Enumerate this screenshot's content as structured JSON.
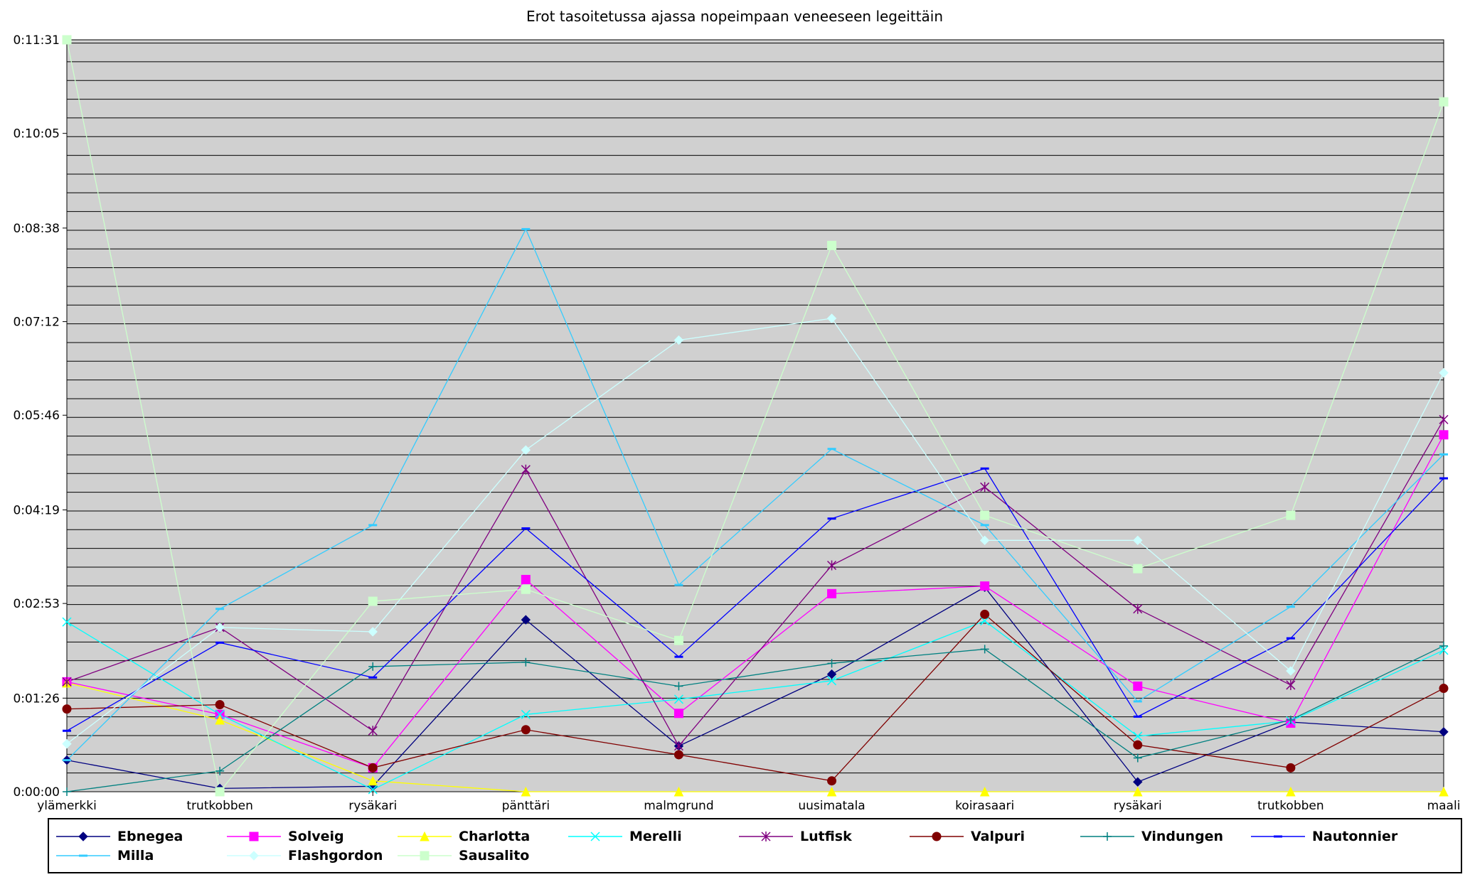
{
  "chart_data": {
    "type": "line",
    "title": "Erot tasoitetussa ajassa nopeimpaan veneeseen legeittäin",
    "xlabel": "",
    "ylabel": "",
    "categories": [
      "ylämerkki",
      "trutkobben",
      "rysäkari",
      "pänttäri",
      "malmgrund",
      "uusimatala",
      "koirasaari",
      "rysäkari",
      "trutkobben",
      "maali"
    ],
    "y_axis_unit": "seconds",
    "ylim": [
      0,
      691
    ],
    "y_ticks": [
      0,
      86,
      173,
      259,
      346,
      432,
      518,
      605,
      691
    ],
    "y_tick_labels": [
      "0:00:00",
      "0:01:26",
      "0:02:53",
      "0:04:19",
      "0:05:46",
      "0:07:12",
      "0:08:38",
      "0:10:05",
      "0:11:31"
    ],
    "grid": "horizontal",
    "plot_background": "#d0d0d0",
    "legend_position": "bottom",
    "series": [
      {
        "name": "Ebnegea",
        "color": "#000080",
        "marker": "diamond",
        "values": [
          29,
          3,
          5,
          158,
          42,
          108,
          188,
          9,
          64,
          55
        ]
      },
      {
        "name": "Solveig",
        "color": "#ff00ff",
        "marker": "square",
        "values": [
          101,
          71,
          22,
          195,
          72,
          182,
          189,
          97,
          63,
          328
        ]
      },
      {
        "name": "Charlotta",
        "color": "#ffff00",
        "marker": "triangle",
        "values": [
          100,
          66,
          10,
          0,
          0,
          0,
          0,
          0,
          0,
          0
        ]
      },
      {
        "name": "Merelli",
        "color": "#00ffff",
        "marker": "x",
        "values": [
          156,
          71,
          2,
          71,
          85,
          102,
          157,
          51,
          65,
          130
        ]
      },
      {
        "name": "Lutfisk",
        "color": "#800080",
        "marker": "star",
        "values": [
          101,
          151,
          56,
          296,
          42,
          208,
          280,
          168,
          98,
          342
        ]
      },
      {
        "name": "Valpuri",
        "color": "#800000",
        "marker": "circle",
        "values": [
          76,
          80,
          22,
          57,
          34,
          10,
          163,
          43,
          22,
          95
        ]
      },
      {
        "name": "Vindungen",
        "color": "#008080",
        "marker": "plus",
        "values": [
          0,
          19,
          115,
          119,
          97,
          118,
          131,
          31,
          66,
          134
        ]
      },
      {
        "name": "Nautonnier",
        "color": "#0000ff",
        "marker": "dash",
        "values": [
          56,
          137,
          105,
          242,
          124,
          251,
          297,
          69,
          141,
          288
        ]
      },
      {
        "name": "Milla",
        "color": "#33ccff",
        "marker": "dash",
        "values": [
          29,
          168,
          245,
          517,
          190,
          315,
          245,
          83,
          170,
          310
        ]
      },
      {
        "name": "Flashgordon",
        "color": "#ccffff",
        "marker": "diamond",
        "values": [
          44,
          151,
          147,
          314,
          415,
          435,
          231,
          231,
          111,
          385
        ]
      },
      {
        "name": "Sausalito",
        "color": "#ccffcc",
        "marker": "square",
        "values": [
          691,
          0,
          175,
          186,
          139,
          502,
          254,
          205,
          254,
          634
        ]
      }
    ]
  }
}
